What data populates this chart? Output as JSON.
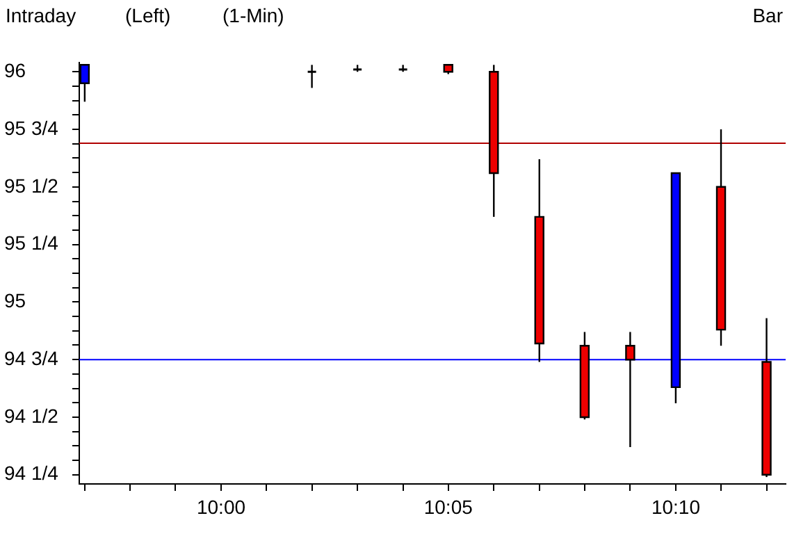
{
  "chart_data": {
    "type": "candlestick",
    "title": "Intraday",
    "subtitle": "(Left)",
    "annotations": [
      "(1-Min)",
      "Bar"
    ],
    "x": [
      9.95,
      10.0333,
      10.05,
      10.0667,
      10.0833,
      10.1,
      10.1167,
      10.1333,
      10.15,
      10.1667,
      10.1833,
      10.2
    ],
    "ohlc": [
      [
        95.95,
        96.03,
        95.87,
        96.03
      ],
      [
        96.0,
        96.03,
        95.93,
        96.0
      ],
      [
        96.01,
        96.03,
        96.0,
        96.01
      ],
      [
        96.01,
        96.03,
        96.0,
        96.01
      ],
      [
        96.03,
        96.03,
        95.99,
        96.0
      ],
      [
        96.0,
        96.03,
        95.37,
        95.56
      ],
      [
        95.37,
        95.62,
        94.74,
        94.82
      ],
      [
        94.81,
        94.87,
        94.49,
        94.5
      ],
      [
        94.81,
        94.87,
        94.37,
        94.75
      ],
      [
        94.63,
        95.56,
        94.56,
        95.56
      ],
      [
        95.5,
        95.75,
        94.81,
        94.88
      ],
      [
        94.74,
        94.93,
        94.24,
        94.25
      ]
    ],
    "colors": [
      "#0000ff",
      "#000000",
      "#000000",
      "#000000",
      "#ee0000",
      "#ee0000",
      "#ee0000",
      "#ee0000",
      "#ee0000",
      "#0000ff",
      "#ee0000",
      "#ee0000"
    ],
    "xlim": [
      9.948,
      10.207
    ],
    "xticks": [
      {
        "value": 9.95,
        "label": null
      },
      {
        "value": 9.9667,
        "label": null
      },
      {
        "value": 9.9833,
        "label": null
      },
      {
        "value": 10.0,
        "label": "10:00"
      },
      {
        "value": 10.0167,
        "label": null
      },
      {
        "value": 10.0333,
        "label": null
      },
      {
        "value": 10.05,
        "label": null
      },
      {
        "value": 10.0667,
        "label": null
      },
      {
        "value": 10.0833,
        "label": "10:05"
      },
      {
        "value": 10.1,
        "label": null
      },
      {
        "value": 10.1167,
        "label": null
      },
      {
        "value": 10.1333,
        "label": null
      },
      {
        "value": 10.15,
        "label": null
      },
      {
        "value": 10.1667,
        "label": "10:10"
      },
      {
        "value": 10.1833,
        "label": null
      },
      {
        "value": 10.2,
        "label": null
      }
    ],
    "ylim": [
      94.21,
      96.04
    ],
    "yticks": [
      {
        "value": 94.25,
        "label": "94 1/4"
      },
      {
        "value": 94.3125,
        "label": null
      },
      {
        "value": 94.375,
        "label": null
      },
      {
        "value": 94.4375,
        "label": null
      },
      {
        "value": 94.5,
        "label": "94 1/2"
      },
      {
        "value": 94.5625,
        "label": null
      },
      {
        "value": 94.625,
        "label": null
      },
      {
        "value": 94.6875,
        "label": null
      },
      {
        "value": 94.75,
        "label": "94 3/4"
      },
      {
        "value": 94.8125,
        "label": null
      },
      {
        "value": 94.875,
        "label": null
      },
      {
        "value": 94.9375,
        "label": null
      },
      {
        "value": 95,
        "label": "95"
      },
      {
        "value": 95.0625,
        "label": null
      },
      {
        "value": 95.125,
        "label": null
      },
      {
        "value": 95.1875,
        "label": null
      },
      {
        "value": 95.25,
        "label": "95 1/4"
      },
      {
        "value": 95.3125,
        "label": null
      },
      {
        "value": 95.375,
        "label": null
      },
      {
        "value": 95.4375,
        "label": null
      },
      {
        "value": 95.5,
        "label": "95 1/2"
      },
      {
        "value": 95.5625,
        "label": null
      },
      {
        "value": 95.625,
        "label": null
      },
      {
        "value": 95.6875,
        "label": null
      },
      {
        "value": 95.75,
        "label": "95 3/4"
      },
      {
        "value": 95.8125,
        "label": null
      },
      {
        "value": 95.875,
        "label": null
      },
      {
        "value": 95.9375,
        "label": null
      },
      {
        "value": 96,
        "label": "96"
      }
    ],
    "ref_lines": [
      {
        "axis": "y",
        "value": 95.69,
        "color": "#b00000"
      },
      {
        "axis": "y",
        "value": 94.75,
        "color": "#0000ff"
      }
    ],
    "grid": false,
    "legend": false
  }
}
